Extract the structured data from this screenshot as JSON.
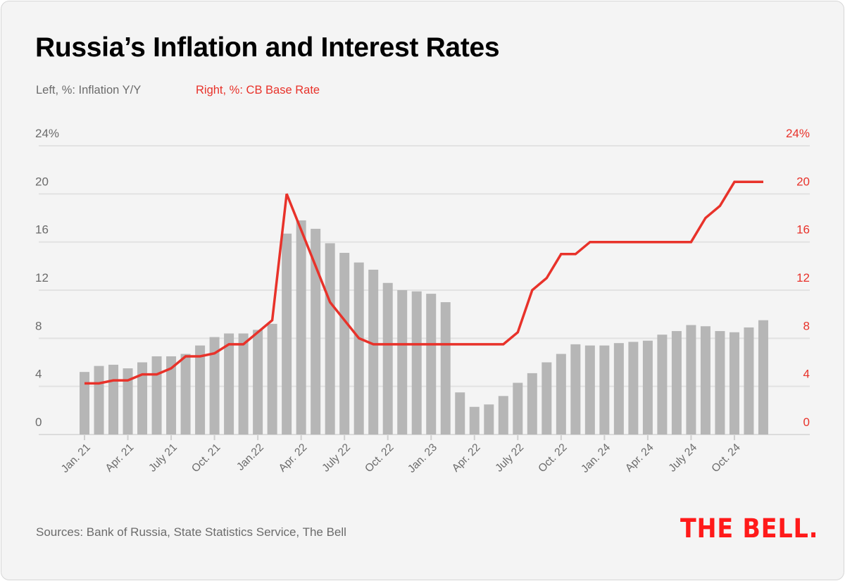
{
  "header": {
    "title": "Russia’s Inflation and Interest Rates",
    "legend_left": "Left, %:  Inflation Y/Y",
    "legend_right": "Right, %: CB Base Rate"
  },
  "footer": {
    "source": "Sources: Bank of Russia,  State Statistics Service, The Bell",
    "logo": "THE BELL."
  },
  "colors": {
    "bars": "#b6b6b6",
    "line": "#e8322a",
    "grid": "#e2e2e2",
    "background": "#f4f4f4"
  },
  "chart_data": {
    "type": "bar+line",
    "title": "Russia’s Inflation and Interest Rates",
    "ylim": [
      0,
      24
    ],
    "y_ticks_left": [
      "0",
      "4",
      "8",
      "12",
      "16",
      "20",
      "24%"
    ],
    "y_ticks_right": [
      "0",
      "4",
      "8",
      "12",
      "16",
      "20",
      "24%"
    ],
    "grid": true,
    "x_tick_labels": [
      "Jan. 21",
      "Apr. 21",
      "July 21",
      "Oct. 21",
      "Jan.22",
      "Apr. 22",
      "July 22",
      "Oct. 22",
      "Jan. 23",
      "Apr. 22",
      "July 22",
      "Oct. 22",
      "Jan. 24",
      "Apr. 24",
      "July 24",
      "Oct. 24"
    ],
    "x_tick_every": 3,
    "series": [
      {
        "name": "Inflation Y/Y",
        "axis": "left",
        "type": "bar",
        "values": [
          5.2,
          5.7,
          5.8,
          5.5,
          6.0,
          6.5,
          6.5,
          6.7,
          7.4,
          8.1,
          8.4,
          8.4,
          8.7,
          9.2,
          16.7,
          17.8,
          17.1,
          15.9,
          15.1,
          14.3,
          13.7,
          12.6,
          12.0,
          11.9,
          11.7,
          11.0,
          3.5,
          2.3,
          2.5,
          3.2,
          4.3,
          5.1,
          6.0,
          6.7,
          7.5,
          7.4,
          7.4,
          7.6,
          7.7,
          7.8,
          8.3,
          8.6,
          9.1,
          9.0,
          8.6,
          8.5,
          8.9,
          9.5
        ]
      },
      {
        "name": "CB Base Rate",
        "axis": "right",
        "type": "line",
        "values": [
          4.25,
          4.25,
          4.5,
          4.5,
          5.0,
          5.0,
          5.5,
          6.5,
          6.5,
          6.75,
          7.5,
          7.5,
          8.5,
          9.5,
          20,
          17,
          14,
          11,
          9.5,
          8,
          7.5,
          7.5,
          7.5,
          7.5,
          7.5,
          7.5,
          7.5,
          7.5,
          7.5,
          7.5,
          8.5,
          12,
          13,
          15,
          15,
          16,
          16,
          16,
          16,
          16,
          16,
          16,
          16,
          18,
          19,
          21,
          21,
          21
        ]
      }
    ]
  }
}
